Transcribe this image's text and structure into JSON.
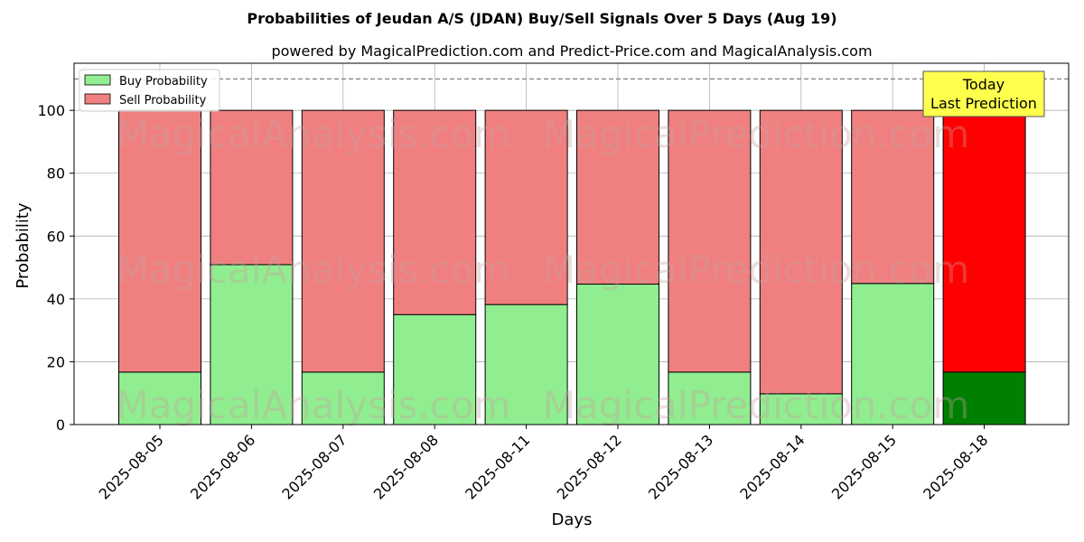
{
  "chart_data": {
    "type": "bar",
    "stacked": true,
    "title": "Probabilities of Jeudan A/S (JDAN) Buy/Sell Signals Over 5 Days (Aug 19)",
    "subtitle": "powered by MagicalPrediction.com and Predict-Price.com and MagicalAnalysis.com",
    "xlabel": "Days",
    "ylabel": "Probability",
    "ylim": [
      0,
      115
    ],
    "yticks": [
      0,
      20,
      40,
      60,
      80,
      100
    ],
    "grid": true,
    "legend_position": "top-left",
    "reference_line": 110,
    "categories": [
      "2025-08-05",
      "2025-08-06",
      "2025-08-07",
      "2025-08-08",
      "2025-08-11",
      "2025-08-12",
      "2025-08-13",
      "2025-08-14",
      "2025-08-15",
      "2025-08-18"
    ],
    "series": [
      {
        "name": "Buy Probability",
        "values": [
          16.7,
          50.9,
          16.7,
          35.0,
          38.2,
          44.7,
          16.7,
          9.8,
          44.9,
          16.7
        ],
        "color": "#90ee90",
        "highlight_color": "#008000"
      },
      {
        "name": "Sell Probability",
        "values": [
          83.3,
          49.1,
          83.3,
          65.0,
          61.8,
          55.3,
          83.3,
          90.2,
          55.1,
          83.3
        ],
        "color": "#f08080",
        "highlight_color": "#ff0000"
      }
    ],
    "annotation": {
      "line1": "Today",
      "line2": "Last Prediction",
      "color": "#ffff4d"
    },
    "watermarks": [
      "MagicalAnalysis.com",
      "MagicalPrediction.com"
    ]
  }
}
